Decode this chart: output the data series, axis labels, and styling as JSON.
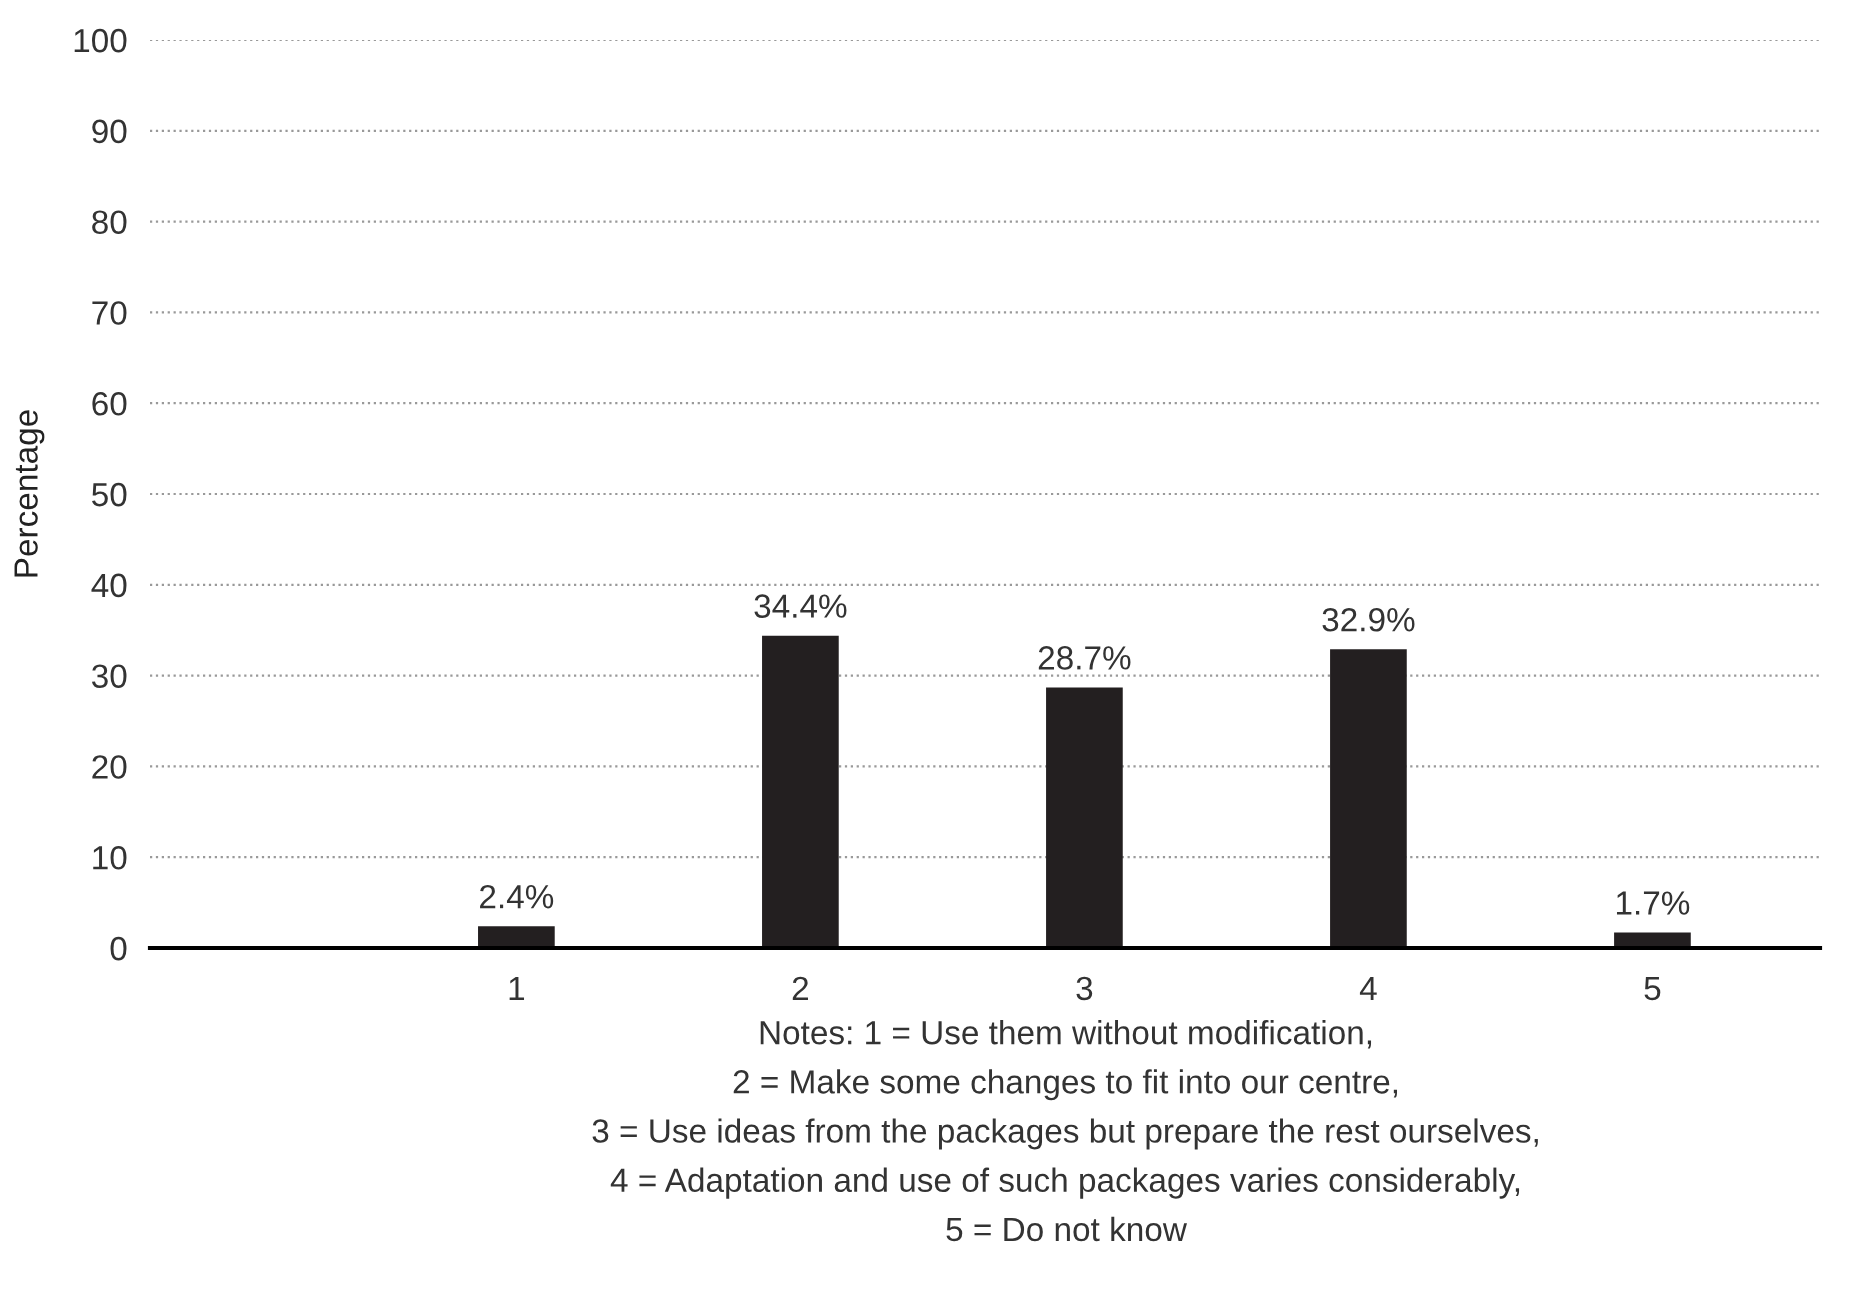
{
  "chart_data": {
    "type": "bar",
    "ylabel": "Percentage",
    "categories": [
      "1",
      "2",
      "3",
      "4",
      "5"
    ],
    "values": [
      2.4,
      34.4,
      28.7,
      32.9,
      1.7
    ],
    "value_labels": [
      "2.4%",
      "34.4%",
      "28.7%",
      "32.9%",
      "1.7%"
    ],
    "color": "#231f20",
    "ylim": [
      0,
      100
    ],
    "yticks": [
      0,
      10,
      20,
      30,
      40,
      50,
      60,
      70,
      80,
      90,
      100
    ],
    "grid": "y",
    "annotations": [
      "Notes: 1 = Use them without modification,\n2 = Make some changes to fit into our centre,\n3 = Use ideas from the packages but prepare the rest ourselves,\n4 = Adaptation and use of such packages varies considerably,\n5 = Do not know"
    ]
  }
}
